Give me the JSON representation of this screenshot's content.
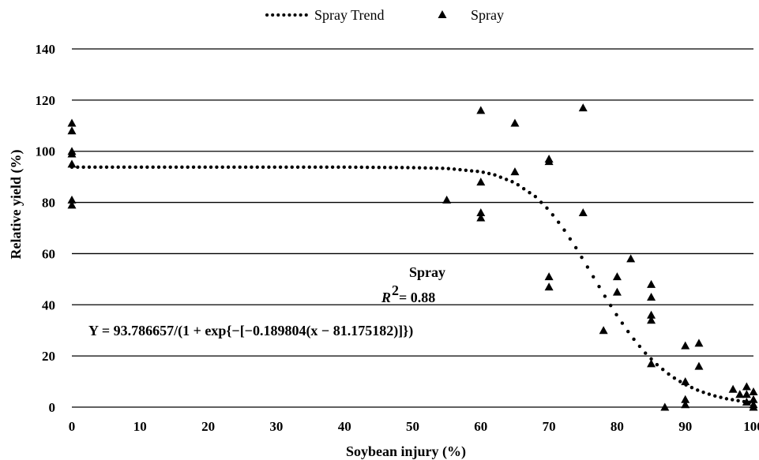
{
  "chart_data": {
    "type": "scatter",
    "xlabel": "Soybean injury (%)",
    "ylabel": "Relative yield (%)",
    "xlim": [
      0,
      100
    ],
    "ylim": [
      0,
      140
    ],
    "x_ticks": [
      "0",
      "10",
      "20",
      "30",
      "40",
      "50",
      "60",
      "70",
      "80",
      "90",
      "100"
    ],
    "y_ticks": [
      "0",
      "20",
      "40",
      "60",
      "80",
      "100",
      "120",
      "140"
    ],
    "grid": "horizontal",
    "legend_position": "top-center",
    "series": [
      {
        "name": "Spray Trend",
        "kind": "trend",
        "style": "dotted",
        "color": "#000000",
        "x": [
          0,
          10,
          20,
          30,
          40,
          50,
          55,
          60,
          62,
          65,
          68,
          70,
          72,
          74,
          76,
          78,
          80,
          82,
          84,
          86,
          88,
          90,
          92,
          94,
          96,
          98,
          100
        ],
        "values": [
          93.8,
          93.8,
          93.8,
          93.8,
          93.8,
          93.6,
          93.3,
          92.0,
          90.8,
          87.7,
          82.3,
          77.0,
          70.2,
          62.1,
          53.2,
          44.2,
          35.7,
          28.0,
          21.5,
          16.2,
          12.0,
          8.8,
          6.4,
          4.6,
          3.3,
          2.4,
          1.7
        ]
      },
      {
        "name": "Spray",
        "kind": "points",
        "marker": "triangle",
        "color": "#000000",
        "x": [
          0,
          0,
          0,
          0,
          0,
          0,
          0,
          55,
          60,
          60,
          60,
          60,
          65,
          65,
          70,
          70,
          70,
          70,
          75,
          75,
          78,
          80,
          80,
          82,
          85,
          85,
          85,
          85,
          85,
          87,
          90,
          90,
          90,
          90,
          92,
          92,
          97,
          98,
          99,
          99,
          99,
          100,
          100,
          100,
          100
        ],
        "values": [
          111,
          108,
          99,
          95,
          81,
          79,
          100,
          81,
          116,
          88,
          76,
          74,
          111,
          92,
          97,
          96,
          51,
          47,
          117,
          76,
          30,
          51,
          45,
          58,
          48,
          43,
          36,
          34,
          17,
          0,
          24,
          10,
          3,
          1,
          25,
          16,
          7,
          5,
          8,
          5,
          2,
          6,
          3,
          1,
          0
        ]
      }
    ],
    "annotations": {
      "label": "Spray",
      "r2_text": "= 0.88",
      "equation": "Y = 93.786657/(1 + exp{−[−0.189804(x − 81.175182)]})"
    }
  }
}
